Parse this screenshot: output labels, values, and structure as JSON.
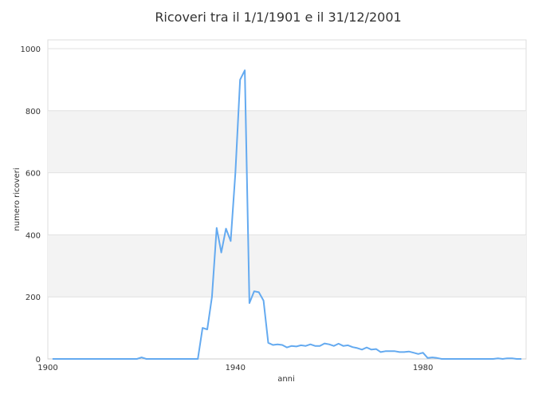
{
  "chart_data": {
    "type": "line",
    "title": "Ricoveri tra il 1/1/1901 e il 31/12/2001",
    "xlabel": "anni",
    "ylabel": "numero ricoveri",
    "xlim": [
      1900,
      2002
    ],
    "ylim": [
      0,
      1000
    ],
    "xticks": [
      1900,
      1940,
      1980
    ],
    "yticks": [
      0,
      200,
      400,
      600,
      800,
      1000
    ],
    "grid": true,
    "line_color": "#64aaf0",
    "band_color": "#f3f3f3",
    "x_start": 1901,
    "values": [
      0,
      0,
      0,
      0,
      0,
      0,
      0,
      0,
      0,
      0,
      0,
      0,
      0,
      0,
      0,
      0,
      0,
      0,
      0,
      5,
      0,
      0,
      0,
      0,
      0,
      0,
      0,
      0,
      0,
      0,
      0,
      0,
      100,
      95,
      200,
      422,
      343,
      420,
      380,
      600,
      900,
      930,
      180,
      218,
      215,
      188,
      52,
      45,
      47,
      45,
      37,
      42,
      40,
      44,
      42,
      47,
      42,
      42,
      50,
      47,
      42,
      49,
      42,
      44,
      38,
      35,
      30,
      37,
      30,
      32,
      22,
      25,
      25,
      25,
      22,
      22,
      24,
      20,
      16,
      20,
      3,
      5,
      3,
      0,
      0,
      0,
      0,
      0,
      0,
      0,
      0,
      0,
      0,
      0,
      0,
      2,
      0,
      2,
      2,
      0,
      0
    ]
  }
}
